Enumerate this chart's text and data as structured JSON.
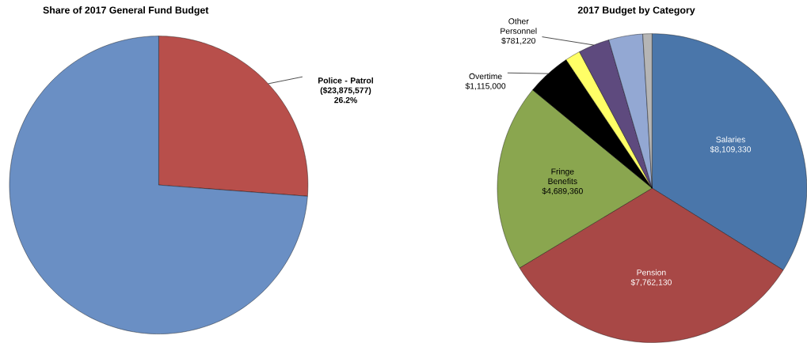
{
  "chart_data": [
    {
      "type": "pie",
      "title": "Share of 2017 General Fund Budget",
      "categories": [
        "Police - Patrol",
        null
      ],
      "values": [
        26.2,
        73.8
      ],
      "colors": [
        "#b84f4b",
        "#6a8fc4"
      ],
      "value_labels": [
        "26.2%",
        null
      ],
      "annotations": [
        "($23,875,577)"
      ]
    },
    {
      "type": "pie",
      "title": "2017 Budget by Category",
      "categories": [
        "Salaries",
        "Pension",
        "Fringe Benefits",
        "Overtime",
        null,
        "Other Personnel",
        null,
        null
      ],
      "values": [
        8109330,
        7762130,
        4689360,
        1115000,
        380000,
        781220,
        850000,
        230000
      ],
      "colors": [
        "#4a76aa",
        "#a84846",
        "#8aa64f",
        "#000000",
        "#ffff66",
        "#5e4a7e",
        "#93a8d3",
        "#b5b5b5"
      ],
      "value_labels": [
        "$8,109,330",
        "$7,762,130",
        "$4,689,360",
        "$1,115,000",
        null,
        "$781,220",
        null,
        null
      ]
    }
  ]
}
